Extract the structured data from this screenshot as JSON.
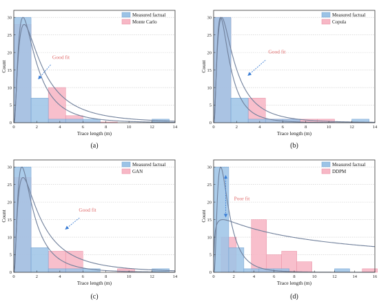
{
  "colors": {
    "measured": "#9cc3e6",
    "measured_edge": "#6f9fcf",
    "model": "#f7b8c6",
    "model_edge": "#e88aa0",
    "fit_curve": "#6f7f9a",
    "annotation_text": "#e06a6a",
    "arrow": "#3d7fd6",
    "grid": "#c8c8c8"
  },
  "chart_data": [
    {
      "type": "bar",
      "panel": "(a)",
      "xlabel": "Trace length (m)",
      "ylabel": "Count",
      "xlim": [
        0,
        14
      ],
      "ylim": [
        0,
        32
      ],
      "xticks": [
        0,
        2,
        4,
        6,
        8,
        10,
        12,
        14
      ],
      "yticks": [
        0,
        5,
        10,
        15,
        20,
        25,
        30
      ],
      "grid": true,
      "legend_position": "top-right",
      "series": [
        {
          "name": "Measured factual",
          "bin_width": 1.5,
          "x": [
            0.75,
            2.25,
            3.75,
            5.25,
            6.75,
            8.25,
            9.75,
            11.25,
            12.75
          ],
          "values": [
            30,
            7,
            1,
            1,
            1,
            0,
            0,
            0,
            1
          ]
        },
        {
          "name": "Monte Carlo",
          "bin_width": 1.5,
          "x": [
            0.75,
            2.25,
            3.75,
            5.25,
            6.75,
            8.25,
            9.75,
            11.25,
            12.75
          ],
          "values": [
            28,
            0,
            10,
            2,
            0.3,
            0.2,
            0,
            0,
            0
          ]
        }
      ],
      "fit_curves": [
        {
          "peak_x": 0.8,
          "peak_y": 30,
          "sigma": 0.85
        },
        {
          "peak_x": 0.9,
          "peak_y": 28,
          "sigma": 0.95
        }
      ],
      "annotation": {
        "text": "Good fit",
        "text_x": 4.1,
        "text_y": 18.2,
        "arrow_from": [
          3.2,
          16.5
        ],
        "arrow_to": [
          2.15,
          12.5
        ]
      }
    },
    {
      "type": "bar",
      "panel": "(b)",
      "xlabel": "Trace length (m)",
      "ylabel": "Count",
      "xlim": [
        0,
        14
      ],
      "ylim": [
        0,
        32
      ],
      "xticks": [
        0,
        2,
        4,
        6,
        8,
        10,
        12,
        14
      ],
      "yticks": [
        0,
        5,
        10,
        15,
        20,
        25,
        30
      ],
      "grid": true,
      "legend_position": "top-right",
      "series": [
        {
          "name": "Measured factual",
          "bin_width": 1.5,
          "x": [
            0.75,
            2.25,
            3.75,
            5.25,
            6.75,
            8.25,
            9.75,
            11.25,
            12.75
          ],
          "values": [
            30,
            7,
            1,
            1,
            1,
            0,
            0,
            0,
            1
          ]
        },
        {
          "name": "Copula",
          "bin_width": 1.5,
          "x": [
            0.75,
            2.25,
            3.75,
            5.25,
            6.75,
            8.25,
            9.75,
            11.25,
            12.75
          ],
          "values": [
            30,
            0,
            7,
            1,
            1,
            1,
            1,
            0,
            0
          ]
        }
      ],
      "fit_curves": [
        {
          "peak_x": 0.6,
          "peak_y": 30,
          "sigma": 0.8
        },
        {
          "peak_x": 0.7,
          "peak_y": 30,
          "sigma": 0.9
        }
      ],
      "annotation": {
        "text": "Good fit",
        "text_x": 5.5,
        "text_y": 19.7,
        "arrow_from": [
          4.5,
          17.8
        ],
        "arrow_to": [
          3.0,
          13.5
        ]
      }
    },
    {
      "type": "bar",
      "panel": "(c)",
      "xlabel": "Trace length (m)",
      "ylabel": "Count",
      "xlim": [
        0,
        14
      ],
      "ylim": [
        0,
        32
      ],
      "xticks": [
        0,
        2,
        4,
        6,
        8,
        10,
        12,
        14
      ],
      "yticks": [
        0,
        5,
        10,
        15,
        20,
        25,
        30
      ],
      "grid": true,
      "legend_position": "top-right",
      "series": [
        {
          "name": "Measured factual",
          "bin_width": 1.5,
          "x": [
            0.75,
            2.25,
            3.75,
            5.25,
            6.75,
            8.25,
            9.75,
            11.25,
            12.75
          ],
          "values": [
            30,
            7,
            1,
            1,
            1,
            0,
            0,
            0,
            1
          ]
        },
        {
          "name": "GAN",
          "bin_width": 1.5,
          "x": [
            0.75,
            2.25,
            3.75,
            5.25,
            6.75,
            8.25,
            9.75,
            11.25,
            12.75
          ],
          "values": [
            27,
            0,
            6,
            6,
            0,
            0,
            1,
            0,
            0
          ]
        }
      ],
      "fit_curves": [
        {
          "peak_x": 0.7,
          "peak_y": 30,
          "sigma": 0.85
        },
        {
          "peak_x": 0.8,
          "peak_y": 27,
          "sigma": 1.0
        }
      ],
      "annotation": {
        "text": "Good fit",
        "text_x": 6.4,
        "text_y": 17.3,
        "arrow_from": [
          5.7,
          15.5
        ],
        "arrow_to": [
          4.5,
          12.3
        ]
      }
    },
    {
      "type": "bar",
      "panel": "(d)",
      "xlabel": "Trace length (m)",
      "ylabel": "Count",
      "xlim": [
        0,
        16
      ],
      "ylim": [
        0,
        32
      ],
      "xticks": [
        0,
        2,
        4,
        6,
        8,
        10,
        12,
        14,
        16
      ],
      "yticks": [
        0,
        5,
        10,
        15,
        20,
        25,
        30
      ],
      "grid": true,
      "legend_position": "top-right",
      "series": [
        {
          "name": "Measured factual",
          "bin_width": 1.5,
          "x": [
            0.75,
            2.25,
            3.75,
            5.25,
            6.75,
            8.25,
            9.75,
            11.25,
            12.75
          ],
          "values": [
            30,
            7,
            1,
            1,
            1,
            0,
            0,
            0,
            1
          ]
        },
        {
          "name": "DDPM",
          "bin_width": 1.5,
          "x": [
            1.5,
            3.0,
            4.5,
            6.0,
            7.5,
            9.0,
            10.5,
            12.0,
            13.5,
            15.5
          ],
          "values": [
            10,
            0,
            15,
            5,
            6,
            3,
            0,
            0,
            0,
            1
          ]
        }
      ],
      "fit_curves": [
        {
          "peak_x": 0.7,
          "peak_y": 30,
          "sigma": 0.75
        },
        {
          "peak_x": 0.9,
          "peak_y": 15,
          "sigma": 2.4
        }
      ],
      "annotation": {
        "text": "Poor fit",
        "text_x": 2.8,
        "text_y": 20.5,
        "arrow_from": [
          1.2,
          27.5
        ],
        "arrow_to": [
          1.2,
          15.8
        ]
      }
    }
  ]
}
